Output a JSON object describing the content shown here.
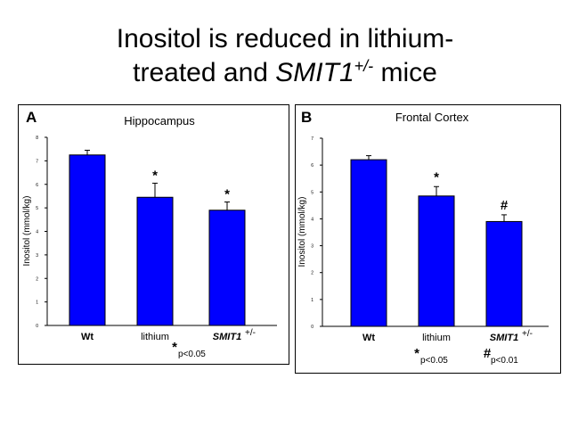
{
  "slide": {
    "title_line1": "Inositol is reduced in lithium-",
    "title_line2_prefix": "treated and ",
    "title_line2_gene": "SMIT1",
    "title_line2_sup": "+/-",
    "title_line2_suffix": " mice"
  },
  "colors": {
    "bar": "#0000ff",
    "axis": "#000000"
  },
  "chart_data": [
    {
      "type": "bar",
      "panel_label": "A",
      "title": "Hippocampus",
      "ylabel": "Inositol (mmol/kg)",
      "ylim": [
        0,
        8
      ],
      "yticks": [
        "0",
        "1",
        "2",
        "3",
        "4",
        "5",
        "6",
        "7",
        "8"
      ],
      "categories": [
        "Wt",
        "lithium",
        "SMIT1"
      ],
      "category_sup": [
        "",
        "",
        "+/-"
      ],
      "values": [
        7.25,
        5.45,
        4.9
      ],
      "errors": [
        0.2,
        0.6,
        0.35
      ],
      "markers": [
        "",
        "*",
        "*"
      ],
      "notes": [
        {
          "symbol": "*",
          "text": "p<0.05"
        }
      ]
    },
    {
      "type": "bar",
      "panel_label": "B",
      "title": "Frontal Cortex",
      "ylabel": "Inositol (mmol/kg)",
      "ylim": [
        0,
        7
      ],
      "yticks": [
        "0",
        "1",
        "2",
        "3",
        "4",
        "5",
        "6",
        "7"
      ],
      "categories": [
        "Wt",
        "lithium",
        "SMIT1"
      ],
      "category_sup": [
        "",
        "",
        "+/-"
      ],
      "values": [
        6.2,
        4.85,
        3.9
      ],
      "errors": [
        0.15,
        0.35,
        0.25
      ],
      "markers": [
        "",
        "*",
        "#"
      ],
      "notes": [
        {
          "symbol": "*",
          "text": "p<0.05"
        },
        {
          "symbol": "#",
          "text": "p<0.01"
        }
      ]
    }
  ]
}
